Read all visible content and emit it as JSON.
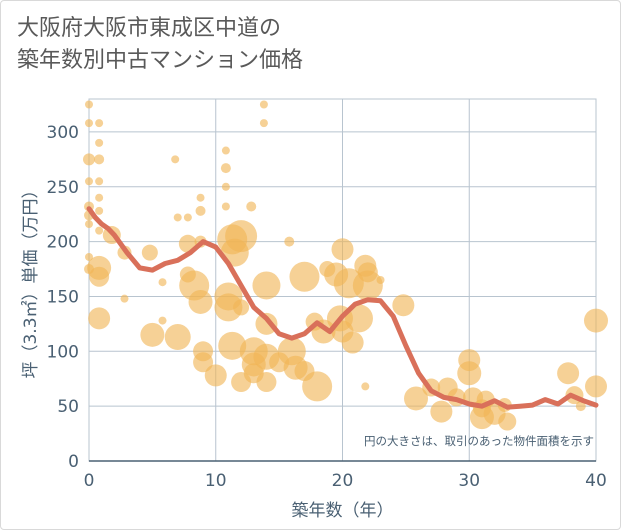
{
  "chart_title": "大阪府大阪市東成区中道の\n築年数別中古マンション価格",
  "colors": {
    "bubble": "#f0b456",
    "line": "#d9705a",
    "grid": "#b8c4cf",
    "text": "#4a6073"
  },
  "chart_data": {
    "type": "scatter",
    "title": "大阪府大阪市東成区中道の\n築年数別中古マンション価格",
    "xlabel": "築年数（年）",
    "ylabel": "坪（3.3㎡）単価（万円）",
    "xlim": [
      0,
      40
    ],
    "ylim": [
      0,
      330
    ],
    "xticks": [
      0,
      10,
      20,
      30,
      40
    ],
    "yticks": [
      0,
      50,
      100,
      150,
      200,
      250,
      300
    ],
    "grid": true,
    "annotation": "円の大きさは、取引のあった物件面積を示す",
    "trend_line": {
      "x": [
        0,
        0.5,
        1,
        1.5,
        2,
        3,
        4,
        5,
        6,
        7,
        8,
        9,
        10,
        11,
        12,
        13,
        14,
        15,
        16,
        17,
        18,
        19,
        20,
        21,
        22,
        23,
        24,
        25,
        26,
        27,
        28,
        29,
        30,
        31,
        32,
        33,
        34,
        35,
        36,
        37,
        38,
        39,
        40
      ],
      "y": [
        230,
        222,
        216,
        212,
        206,
        190,
        176,
        174,
        180,
        183,
        190,
        200,
        195,
        180,
        160,
        140,
        130,
        116,
        112,
        116,
        126,
        118,
        132,
        143,
        147,
        146,
        132,
        105,
        80,
        64,
        58,
        56,
        52,
        50,
        55,
        49,
        50,
        51,
        56,
        52,
        60,
        55,
        51
      ]
    },
    "points": [
      {
        "x": 0,
        "y": 325,
        "s": 4
      },
      {
        "x": 0,
        "y": 308,
        "s": 4
      },
      {
        "x": 0,
        "y": 275,
        "s": 6
      },
      {
        "x": 0,
        "y": 255,
        "s": 4
      },
      {
        "x": 0,
        "y": 232,
        "s": 5
      },
      {
        "x": 0,
        "y": 224,
        "s": 5
      },
      {
        "x": 0,
        "y": 216,
        "s": 4
      },
      {
        "x": 0,
        "y": 186,
        "s": 4
      },
      {
        "x": 0,
        "y": 175,
        "s": 5
      },
      {
        "x": 0.8,
        "y": 308,
        "s": 4
      },
      {
        "x": 0.8,
        "y": 290,
        "s": 4
      },
      {
        "x": 0.8,
        "y": 275,
        "s": 5
      },
      {
        "x": 0.8,
        "y": 255,
        "s": 4
      },
      {
        "x": 0.8,
        "y": 240,
        "s": 4
      },
      {
        "x": 0.8,
        "y": 228,
        "s": 4
      },
      {
        "x": 0.8,
        "y": 210,
        "s": 4
      },
      {
        "x": 0.8,
        "y": 176,
        "s": 12
      },
      {
        "x": 0.8,
        "y": 168,
        "s": 10
      },
      {
        "x": 0.8,
        "y": 130,
        "s": 11
      },
      {
        "x": 1.8,
        "y": 206,
        "s": 9
      },
      {
        "x": 2.8,
        "y": 190,
        "s": 7
      },
      {
        "x": 2.8,
        "y": 148,
        "s": 4
      },
      {
        "x": 4.8,
        "y": 190,
        "s": 8
      },
      {
        "x": 5.8,
        "y": 163,
        "s": 4
      },
      {
        "x": 5.8,
        "y": 128,
        "s": 4
      },
      {
        "x": 5,
        "y": 115,
        "s": 12
      },
      {
        "x": 6.8,
        "y": 275,
        "s": 4
      },
      {
        "x": 7,
        "y": 222,
        "s": 4
      },
      {
        "x": 7.8,
        "y": 222,
        "s": 4
      },
      {
        "x": 7,
        "y": 113,
        "s": 13
      },
      {
        "x": 7.8,
        "y": 170,
        "s": 8
      },
      {
        "x": 7.8,
        "y": 198,
        "s": 9
      },
      {
        "x": 8.3,
        "y": 160,
        "s": 15
      },
      {
        "x": 8.8,
        "y": 240,
        "s": 4
      },
      {
        "x": 8.8,
        "y": 228,
        "s": 5
      },
      {
        "x": 8.8,
        "y": 200,
        "s": 6
      },
      {
        "x": 8.8,
        "y": 145,
        "s": 12
      },
      {
        "x": 9,
        "y": 100,
        "s": 10
      },
      {
        "x": 9,
        "y": 90,
        "s": 10
      },
      {
        "x": 10,
        "y": 78,
        "s": 11
      },
      {
        "x": 10.8,
        "y": 283,
        "s": 4
      },
      {
        "x": 10.8,
        "y": 267,
        "s": 5
      },
      {
        "x": 10.8,
        "y": 250,
        "s": 4
      },
      {
        "x": 10.8,
        "y": 232,
        "s": 4
      },
      {
        "x": 11.3,
        "y": 202,
        "s": 15
      },
      {
        "x": 11.5,
        "y": 190,
        "s": 14
      },
      {
        "x": 12,
        "y": 205,
        "s": 16
      },
      {
        "x": 11,
        "y": 150,
        "s": 14
      },
      {
        "x": 11,
        "y": 140,
        "s": 14
      },
      {
        "x": 11.3,
        "y": 105,
        "s": 14
      },
      {
        "x": 12,
        "y": 140,
        "s": 8
      },
      {
        "x": 12,
        "y": 72,
        "s": 10
      },
      {
        "x": 12.8,
        "y": 232,
        "s": 5
      },
      {
        "x": 13,
        "y": 100,
        "s": 14
      },
      {
        "x": 13,
        "y": 88,
        "s": 12
      },
      {
        "x": 13,
        "y": 80,
        "s": 10
      },
      {
        "x": 13.8,
        "y": 325,
        "s": 4
      },
      {
        "x": 13.8,
        "y": 308,
        "s": 4
      },
      {
        "x": 14,
        "y": 160,
        "s": 14
      },
      {
        "x": 14,
        "y": 125,
        "s": 11
      },
      {
        "x": 14,
        "y": 95,
        "s": 13
      },
      {
        "x": 14,
        "y": 72,
        "s": 10
      },
      {
        "x": 15,
        "y": 90,
        "s": 10
      },
      {
        "x": 15.8,
        "y": 200,
        "s": 5
      },
      {
        "x": 16,
        "y": 100,
        "s": 14
      },
      {
        "x": 16.3,
        "y": 85,
        "s": 12
      },
      {
        "x": 17,
        "y": 168,
        "s": 15
      },
      {
        "x": 17,
        "y": 82,
        "s": 10
      },
      {
        "x": 17.8,
        "y": 127,
        "s": 9
      },
      {
        "x": 18,
        "y": 68,
        "s": 15
      },
      {
        "x": 18.5,
        "y": 118,
        "s": 12
      },
      {
        "x": 18.8,
        "y": 175,
        "s": 8
      },
      {
        "x": 19.5,
        "y": 170,
        "s": 12
      },
      {
        "x": 19.8,
        "y": 130,
        "s": 13
      },
      {
        "x": 20,
        "y": 193,
        "s": 11
      },
      {
        "x": 20,
        "y": 118,
        "s": 11
      },
      {
        "x": 20.5,
        "y": 162,
        "s": 15
      },
      {
        "x": 20.8,
        "y": 108,
        "s": 11
      },
      {
        "x": 21.3,
        "y": 130,
        "s": 14
      },
      {
        "x": 21.8,
        "y": 178,
        "s": 11
      },
      {
        "x": 22,
        "y": 172,
        "s": 10
      },
      {
        "x": 22,
        "y": 160,
        "s": 15
      },
      {
        "x": 21.8,
        "y": 68,
        "s": 4
      },
      {
        "x": 23,
        "y": 165,
        "s": 4
      },
      {
        "x": 24.8,
        "y": 142,
        "s": 11
      },
      {
        "x": 25.8,
        "y": 57,
        "s": 12
      },
      {
        "x": 27,
        "y": 67,
        "s": 9
      },
      {
        "x": 27.8,
        "y": 45,
        "s": 11
      },
      {
        "x": 28.3,
        "y": 67,
        "s": 10
      },
      {
        "x": 29,
        "y": 58,
        "s": 9
      },
      {
        "x": 30,
        "y": 92,
        "s": 11
      },
      {
        "x": 30,
        "y": 80,
        "s": 12
      },
      {
        "x": 30.3,
        "y": 58,
        "s": 10
      },
      {
        "x": 31,
        "y": 40,
        "s": 12
      },
      {
        "x": 31,
        "y": 48,
        "s": 9
      },
      {
        "x": 31.3,
        "y": 56,
        "s": 9
      },
      {
        "x": 32,
        "y": 43,
        "s": 11
      },
      {
        "x": 32.8,
        "y": 51,
        "s": 7
      },
      {
        "x": 33,
        "y": 36,
        "s": 9
      },
      {
        "x": 37.8,
        "y": 80,
        "s": 11
      },
      {
        "x": 38.3,
        "y": 60,
        "s": 9
      },
      {
        "x": 38.8,
        "y": 50,
        "s": 5
      },
      {
        "x": 40,
        "y": 128,
        "s": 12
      },
      {
        "x": 40,
        "y": 68,
        "s": 11
      }
    ]
  }
}
